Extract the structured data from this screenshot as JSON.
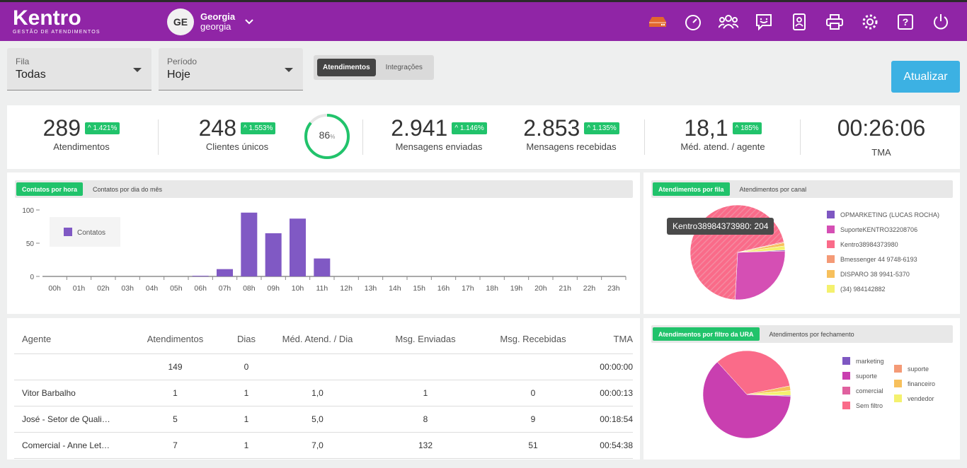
{
  "app": {
    "logo": "Kentro",
    "logo_sub": "GESTÃO DE ATENDIMENTOS",
    "user_initials": "GE",
    "user_name": "Georgia",
    "user_login": "georgia"
  },
  "filters": {
    "queue_label": "Fila",
    "queue_value": "Todas",
    "period_label": "Período",
    "period_value": "Hoje",
    "view_tabs": [
      "Atendimentos",
      "Integrações"
    ],
    "refresh_label": "Atualizar"
  },
  "stats": {
    "atendimentos": {
      "value": "289",
      "badge": "1.421%",
      "label": "Atendimentos"
    },
    "clientes": {
      "value": "248",
      "badge": "1.553%",
      "label": "Clientes únicos"
    },
    "percent": {
      "value": "86",
      "unit": "%",
      "fraction": 0.86
    },
    "enviadas": {
      "value": "2.941",
      "badge": "1.146%",
      "label": "Mensagens enviadas"
    },
    "recebidas": {
      "value": "2.853",
      "badge": "1.135%",
      "label": "Mensagens recebidas"
    },
    "media": {
      "value": "18,1",
      "badge": "185%",
      "label": "Méd. atend. / agente"
    },
    "tma": {
      "value": "00:26:06",
      "label": "TMA"
    }
  },
  "hourly": {
    "tabs": [
      "Contatos por hora",
      "Contatos por dia do mês"
    ]
  },
  "queue_chart": {
    "tabs": [
      "Atendimentos por fila",
      "Atendimentos por canal"
    ],
    "tooltip": "Kentro38984373980: 204"
  },
  "ura_chart": {
    "tabs": [
      "Atendimentos por filtro da URA",
      "Atendimentos por fechamento"
    ]
  },
  "colors": {
    "topbar": "#9025a6",
    "accent_green": "#21c36b",
    "refresh_blue": "#3cb1e3",
    "bar_purple": "#8059c4"
  },
  "chart_data": [
    {
      "type": "bar",
      "title": "",
      "categories": [
        "00h",
        "01h",
        "02h",
        "03h",
        "04h",
        "05h",
        "06h",
        "07h",
        "08h",
        "09h",
        "10h",
        "11h",
        "12h",
        "13h",
        "14h",
        "15h",
        "16h",
        "17h",
        "18h",
        "19h",
        "20h",
        "21h",
        "22h",
        "23h"
      ],
      "series": [
        {
          "name": "Contatos",
          "values": [
            0,
            0,
            0,
            0,
            0,
            0,
            1,
            11,
            96,
            65,
            87,
            27,
            0,
            0,
            0,
            0,
            0,
            0,
            0,
            0,
            0,
            0,
            0,
            0
          ]
        }
      ],
      "yticks": [
        0,
        50,
        100
      ],
      "ylim": [
        0,
        100
      ],
      "legend": "top-left"
    },
    {
      "type": "pie",
      "labels": [
        "OPMARKETING (LUCAS ROCHA)",
        "SuporteKENTRO32208706",
        "Kentro38984373980",
        "Bmessenger 44 9748-6193",
        "DISPARO 38 9941-5370",
        "(34) 984142882"
      ],
      "values": [
        1,
        76,
        204,
        1,
        3,
        4
      ],
      "colors": [
        "#7e57c2",
        "#d54fb4",
        "#fa6b89",
        "#f49a76",
        "#f7c05c",
        "#f4f16e"
      ],
      "legend": "right"
    },
    {
      "type": "pie",
      "labels": [
        "marketing",
        "suporte",
        "comercial",
        "Sem filtro",
        "suporte",
        "financeiro",
        "vendedor"
      ],
      "values": [
        1,
        181,
        0,
        97,
        0,
        5,
        5
      ],
      "colors": [
        "#7e57c2",
        "#c93fb0",
        "#e0619f",
        "#fa6b89",
        "#f49a76",
        "#f7c05c",
        "#f4f16e"
      ],
      "legend": "right"
    }
  ],
  "agents_table": {
    "headers": [
      "Agente",
      "Atendimentos",
      "Dias",
      "Méd. Atend. / Dia",
      "Msg. Enviadas",
      "Msg. Recebidas",
      "TMA"
    ],
    "rows": [
      [
        "",
        "149",
        "0",
        "",
        "",
        "",
        "00:00:00"
      ],
      [
        "Vitor Barbalho",
        "1",
        "1",
        "1,0",
        "1",
        "0",
        "00:00:13"
      ],
      [
        "José - Setor de Quali…",
        "5",
        "1",
        "5,0",
        "8",
        "9",
        "00:18:54"
      ],
      [
        "Comercial - Anne Let…",
        "7",
        "1",
        "7,0",
        "132",
        "51",
        "00:54:38"
      ]
    ]
  }
}
